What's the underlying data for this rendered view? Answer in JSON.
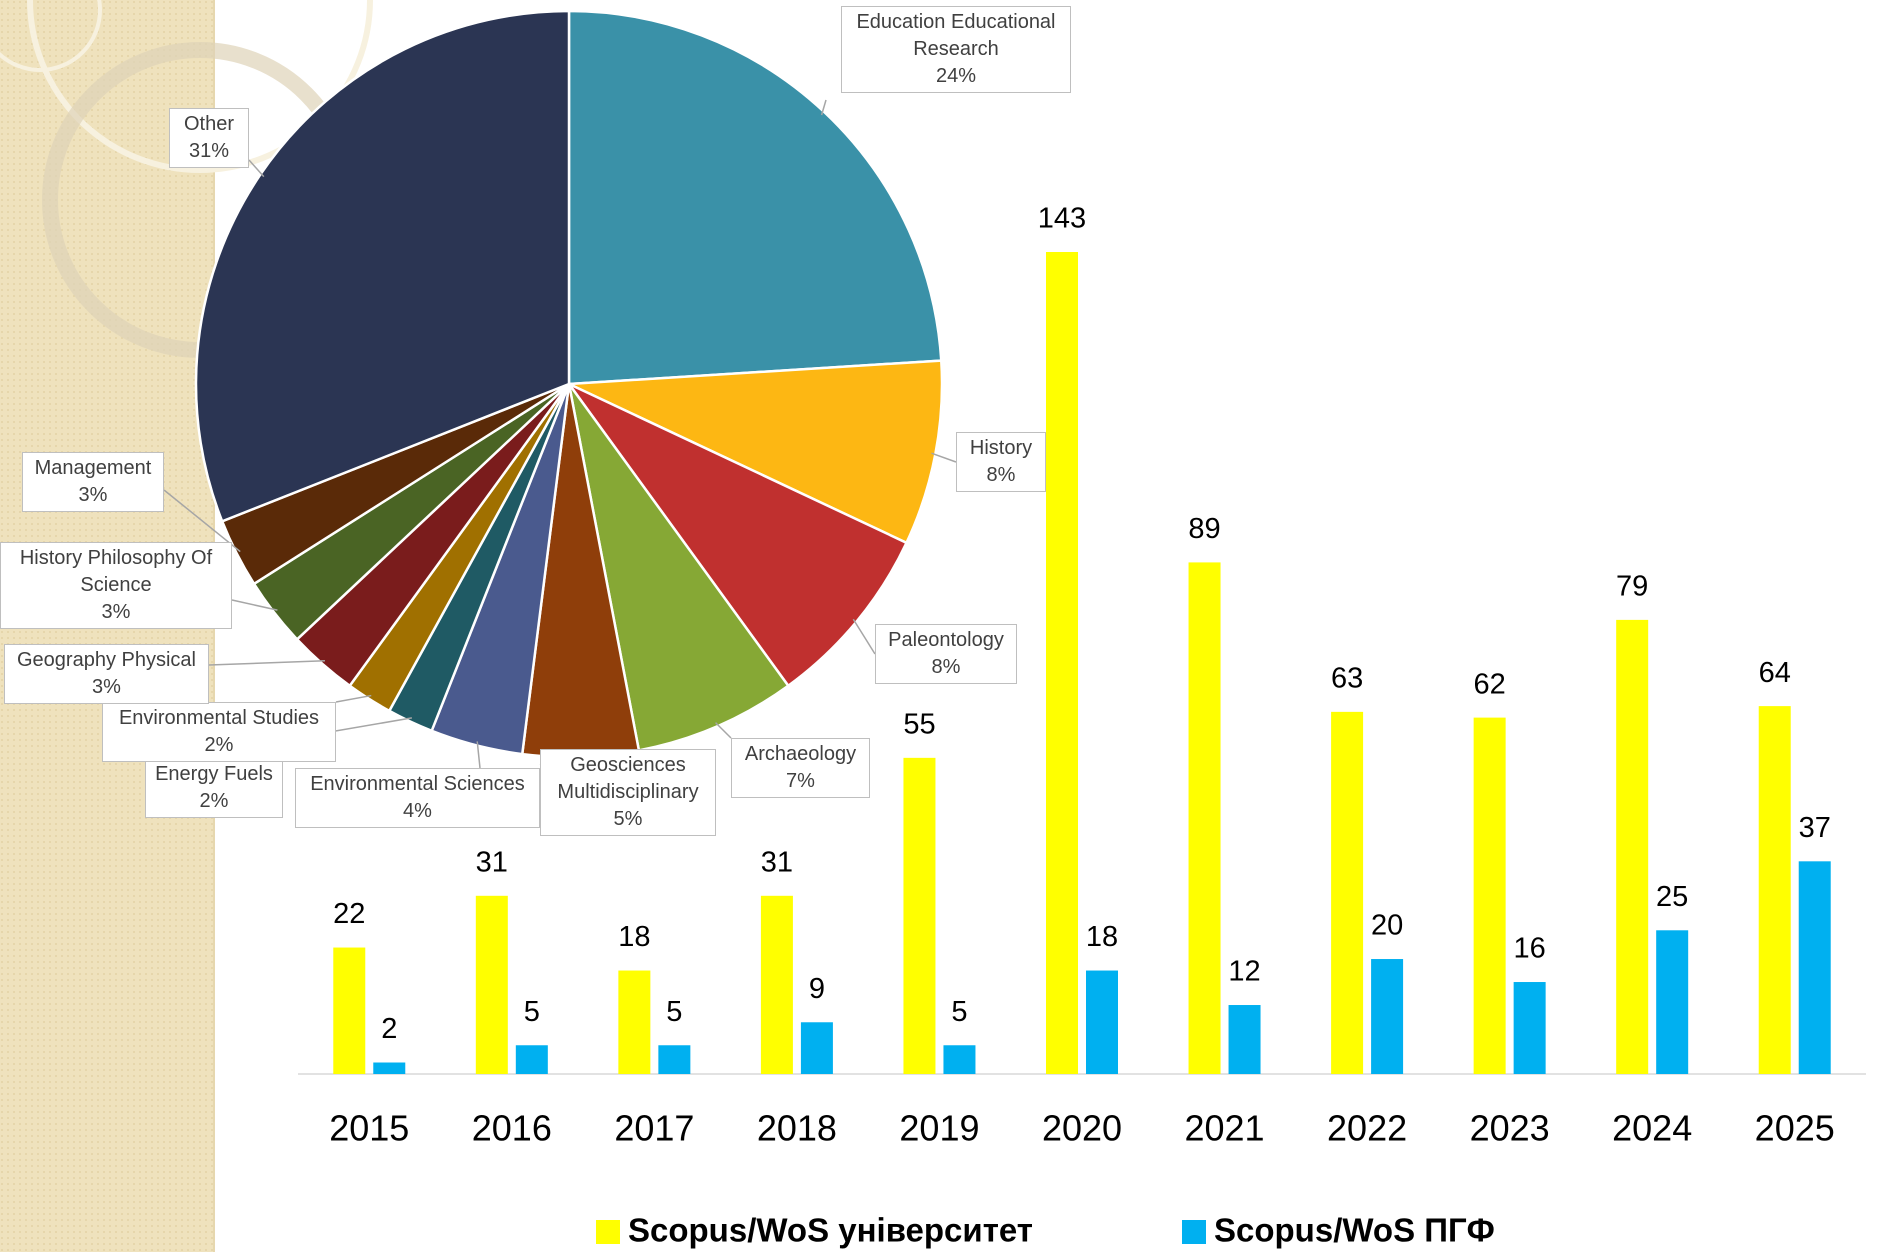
{
  "chart_data": [
    {
      "type": "pie",
      "categories": [
        "Education Educational Research",
        "History",
        "Paleontology",
        "Archaeology",
        "Geosciences Multidisciplinary",
        "Environmental Sciences",
        "Energy Fuels",
        "Environmental Studies",
        "Geography Physical",
        "History Philosophy Of Science",
        "Management",
        "Other"
      ],
      "values": [
        24,
        8,
        8,
        7,
        5,
        4,
        2,
        2,
        3,
        3,
        3,
        31
      ],
      "value_labels": [
        "24%",
        "8%",
        "8%",
        "7%",
        "5%",
        "4%",
        "2%",
        "2%",
        "3%",
        "3%",
        "3%",
        "31%"
      ],
      "colors": [
        "#3a91a8",
        "#fdb713",
        "#c0302f",
        "#86a835",
        "#8f3e0a",
        "#4a5a8e",
        "#1f5a64",
        "#a07000",
        "#7a1c1c",
        "#4a6424",
        "#5a2a08",
        "#2b3553"
      ]
    },
    {
      "type": "bar",
      "categories": [
        "2015",
        "2016",
        "2017",
        "2018",
        "2019",
        "2020",
        "2021",
        "2022",
        "2023",
        "2024",
        "2025"
      ],
      "series": [
        {
          "name": "Scopus/WoS університет",
          "color": "#ffff00",
          "values": [
            22,
            31,
            18,
            31,
            55,
            143,
            89,
            63,
            62,
            79,
            64
          ]
        },
        {
          "name": "Scopus/WoS ПГФ",
          "color": "#00b0f0",
          "values": [
            2,
            5,
            5,
            9,
            5,
            18,
            12,
            20,
            16,
            25,
            37
          ]
        }
      ]
    }
  ]
}
